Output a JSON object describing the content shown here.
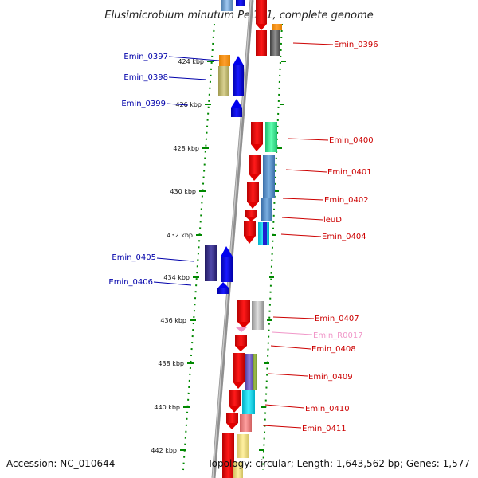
{
  "title": "Elusimicrobium minutum Pei191, complete genome",
  "footer": {
    "accession": "Accession: NC_010644",
    "topology": "Topology: circular; Length: 1,643,562 bp; Genes: 1,577"
  },
  "ticks": [
    "424 kbp",
    "426 kbp",
    "428 kbp",
    "430 kbp",
    "432 kbp",
    "434 kbp",
    "436 kbp",
    "438 kbp",
    "440 kbp",
    "442 kbp"
  ],
  "left_genes": [
    "Emin_0397",
    "Emin_0398",
    "Emin_0399",
    "Emin_0405",
    "Emin_0406"
  ],
  "right_genes": [
    "Emin_0396",
    "Emin_0400",
    "Emin_0401",
    "Emin_0402",
    "leuD",
    "Emin_0404",
    "Emin_0407",
    "Emin_R0017",
    "Emin_0408",
    "Emin_0409",
    "Emin_0410",
    "Emin_0411"
  ],
  "colors": {
    "forward_strand": "#0000ff",
    "reverse_strand": "#ff0000",
    "rna": "#f096c8",
    "label_left": "#0000aa",
    "label_right": "#cc0000",
    "tick_marks": "#008800"
  }
}
